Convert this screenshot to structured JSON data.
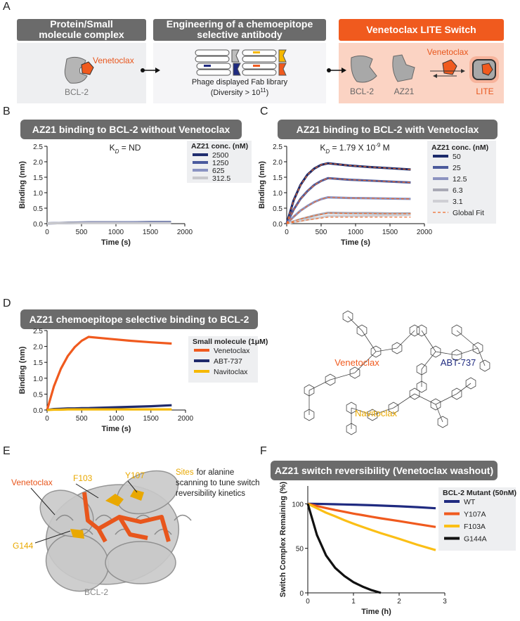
{
  "panel_labels": [
    "A",
    "B",
    "C",
    "D",
    "E",
    "F"
  ],
  "panel_a": {
    "boxes": [
      {
        "header": [
          "Protein/Small",
          "molecule complex"
        ],
        "labels": [
          "Venetoclax",
          "BCL-2"
        ]
      },
      {
        "header": [
          "Engineering of a chemoepitope",
          "selective antibody"
        ],
        "caption": [
          "Phage displayed Fab library",
          "(Diversity > 10",
          "11",
          ")"
        ]
      },
      {
        "header": [
          "Venetoclax LITE Switch"
        ],
        "labels": [
          "BCL-2",
          "AZ21",
          "Venetoclax",
          "LITE"
        ]
      }
    ]
  },
  "panel_d_structures": [
    {
      "name": "Venetoclax",
      "color": "#f05a1e"
    },
    {
      "name": "ABT-737",
      "color": "#1f2a80"
    },
    {
      "name": "Navitoclax",
      "color": "#e9a800"
    }
  ],
  "panel_e": {
    "labels": [
      {
        "text": "Venetoclax",
        "color": "#e8561c"
      },
      {
        "text": "F103",
        "color": "#e9a800"
      },
      {
        "text": "Y107",
        "color": "#e9a800"
      },
      {
        "text": "G144",
        "color": "#e9a800"
      },
      {
        "text": "BCL-2",
        "color": "#888888"
      }
    ],
    "note": [
      "Sites",
      "for alanine",
      "scanning to tune switch",
      "reversibility kinetics"
    ]
  },
  "chart_data": [
    {
      "type": "line",
      "title": "AZ21 binding to BCL-2 without Venetoclax",
      "annotation": [
        {
          "text": "K"
        },
        {
          "text": "D",
          "style": "sub"
        },
        {
          "text": " = ND"
        }
      ],
      "x_label": "Time (s)",
      "y_label": "Binding (nm)",
      "legend_title": "AZ21 conc. (nM)",
      "xlim": [
        0,
        2000
      ],
      "xticks": [
        0,
        500,
        1000,
        1500,
        2000
      ],
      "ylim": [
        0,
        2.5
      ],
      "yticks": [
        {
          "value": 0,
          "label": "0.0"
        },
        {
          "value": 0.5,
          "label": "0.5"
        },
        {
          "value": 1,
          "label": "1.0"
        },
        {
          "value": 1.5,
          "label": "1.5"
        },
        {
          "value": 2,
          "label": "2.0"
        },
        {
          "value": 2.5,
          "label": "2.5"
        }
      ],
      "x": [
        0,
        300,
        600,
        900,
        1200,
        1500,
        1800
      ],
      "series": [
        {
          "name": "2500",
          "color": "#1f2d6e",
          "values": [
            0.01,
            0.03,
            0.04,
            0.04,
            0.04,
            0.05,
            0.05
          ]
        },
        {
          "name": "1250",
          "color": "#4a5a9e",
          "values": [
            0.01,
            0.02,
            0.03,
            0.03,
            0.04,
            0.04,
            0.04
          ]
        },
        {
          "name": "625",
          "color": "#8a93c2",
          "values": [
            0.01,
            0.02,
            0.03,
            0.03,
            0.03,
            0.03,
            0.03
          ]
        },
        {
          "name": "312.5",
          "color": "#c8c8cc",
          "values": [
            0.01,
            0.02,
            0.02,
            0.02,
            0.02,
            0.02,
            0.02
          ]
        }
      ]
    },
    {
      "type": "line",
      "title": "AZ21 binding to BCL-2 with Venetoclax",
      "annotation": [
        {
          "text": "K"
        },
        {
          "text": "D",
          "style": "sub"
        },
        {
          "text": " = 1.79 X 10"
        },
        {
          "text": "-9",
          "style": "sup"
        },
        {
          "text": " M"
        }
      ],
      "x_label": "Time (s)",
      "y_label": "Binding (nm)",
      "legend_title": "AZ21 conc. (nM)",
      "xlim": [
        0,
        2000
      ],
      "xticks": [
        0,
        500,
        1000,
        1500,
        2000
      ],
      "ylim": [
        0,
        2.5
      ],
      "yticks": [
        {
          "value": 0,
          "label": "0.0"
        },
        {
          "value": 0.5,
          "label": "0.5"
        },
        {
          "value": 1,
          "label": "1.0"
        },
        {
          "value": 1.5,
          "label": "1.5"
        },
        {
          "value": 2,
          "label": "2.0"
        },
        {
          "value": 2.5,
          "label": "2.5"
        }
      ],
      "x": [
        0,
        100,
        200,
        300,
        400,
        500,
        600,
        900,
        1200,
        1500,
        1800
      ],
      "series": [
        {
          "name": "50",
          "color": "#1b2a6b",
          "values": [
            0,
            0.75,
            1.25,
            1.58,
            1.78,
            1.9,
            1.95,
            1.88,
            1.83,
            1.79,
            1.75
          ]
        },
        {
          "name": "25",
          "color": "#4c5a9c",
          "values": [
            0,
            0.45,
            0.8,
            1.05,
            1.25,
            1.38,
            1.47,
            1.42,
            1.39,
            1.36,
            1.33
          ]
        },
        {
          "name": "12.5",
          "color": "#8c93c0",
          "values": [
            0,
            0.22,
            0.42,
            0.57,
            0.7,
            0.79,
            0.85,
            0.83,
            0.82,
            0.81,
            0.8
          ]
        },
        {
          "name": "6.3",
          "color": "#a9a9b5",
          "values": [
            0,
            0.07,
            0.14,
            0.2,
            0.26,
            0.31,
            0.35,
            0.34,
            0.34,
            0.33,
            0.33
          ]
        },
        {
          "name": "3.1",
          "color": "#cfcfd4",
          "values": [
            0,
            0.05,
            0.09,
            0.13,
            0.17,
            0.21,
            0.25,
            0.25,
            0.26,
            0.27,
            0.28
          ]
        },
        {
          "name": "Global Fit",
          "color": "#f06a2a",
          "dashed": true,
          "curves": [
            [
              0,
              0.74,
              1.24,
              1.57,
              1.78,
              1.9,
              1.95,
              1.88,
              1.83,
              1.79,
              1.75
            ],
            [
              0,
              0.44,
              0.79,
              1.05,
              1.24,
              1.38,
              1.47,
              1.42,
              1.39,
              1.36,
              1.33
            ],
            [
              0,
              0.22,
              0.41,
              0.57,
              0.69,
              0.79,
              0.85,
              0.83,
              0.82,
              0.81,
              0.8
            ],
            [
              0,
              0.08,
              0.15,
              0.21,
              0.26,
              0.3,
              0.34,
              0.33,
              0.33,
              0.32,
              0.32
            ],
            [
              0,
              0.04,
              0.08,
              0.12,
              0.15,
              0.18,
              0.21,
              0.21,
              0.21,
              0.21,
              0.21
            ]
          ]
        }
      ]
    },
    {
      "type": "line",
      "title": "AZ21 chemoepitope selective binding to BCL-2",
      "x_label": "Time (s)",
      "y_label": "Binding (nm)",
      "legend_title": "Small molecule (1μM)",
      "xlim": [
        0,
        2000
      ],
      "xticks": [
        0,
        500,
        1000,
        1500,
        2000
      ],
      "ylim": [
        0,
        2.5
      ],
      "yticks": [
        {
          "value": 0,
          "label": "0.0"
        },
        {
          "value": 0.5,
          "label": "0.5"
        },
        {
          "value": 1,
          "label": "1.0"
        },
        {
          "value": 1.5,
          "label": "1.5"
        },
        {
          "value": 2,
          "label": "2.0"
        },
        {
          "value": 2.5,
          "label": "2.5"
        }
      ],
      "x": [
        0,
        100,
        200,
        300,
        400,
        500,
        600,
        900,
        1200,
        1500,
        1800
      ],
      "series": [
        {
          "name": "Venetoclax",
          "color": "#f05a1e",
          "values": [
            0,
            0.75,
            1.3,
            1.7,
            1.98,
            2.18,
            2.3,
            2.24,
            2.18,
            2.13,
            2.09
          ]
        },
        {
          "name": "ABT-737",
          "color": "#1f2a6b",
          "values": [
            0,
            0.03,
            0.04,
            0.05,
            0.05,
            0.06,
            0.06,
            0.08,
            0.1,
            0.12,
            0.15
          ]
        },
        {
          "name": "Navitoclax",
          "color": "#f6b800",
          "values": [
            0,
            0.01,
            0.01,
            0.02,
            0.02,
            0.02,
            0.02,
            0.02,
            0.02,
            0.02,
            0.02
          ]
        }
      ]
    },
    {
      "type": "line",
      "title": "AZ21 switch reversibility (Venetoclax washout)",
      "x_label": "Time (h)",
      "y_label": "Switch Complex Remaining (%)",
      "legend_title": "BCL-2 Mutant (50nM)",
      "xlim": [
        0,
        3
      ],
      "xticks": [
        0,
        1,
        2,
        3
      ],
      "ylim": [
        0,
        120
      ],
      "yticks": [
        0,
        50,
        100
      ],
      "x": [
        0,
        0.2,
        0.4,
        0.6,
        0.8,
        1.0,
        1.2,
        1.4,
        1.6,
        2.0,
        2.4,
        2.8
      ],
      "series": [
        {
          "name": "WT",
          "color": "#1f2a80",
          "values": [
            100,
            99.9,
            99.7,
            99.5,
            99.2,
            99,
            98.7,
            98.4,
            98,
            97.2,
            96.2,
            95
          ]
        },
        {
          "name": "Y107A",
          "color": "#f05a1e",
          "values": [
            100,
            97.5,
            95.2,
            93,
            91,
            89,
            87.2,
            85.4,
            83.7,
            80.6,
            77.2,
            74
          ]
        },
        {
          "name": "F103A",
          "color": "#fbbf16",
          "values": [
            100,
            95,
            90,
            86,
            81.6,
            77.7,
            74,
            70.4,
            67,
            60.7,
            54,
            48
          ]
        },
        {
          "name": "G144A",
          "color": "#111111",
          "values": [
            100,
            65,
            42,
            28,
            19,
            12,
            7,
            3,
            0,
            null,
            null,
            null
          ]
        }
      ]
    }
  ]
}
